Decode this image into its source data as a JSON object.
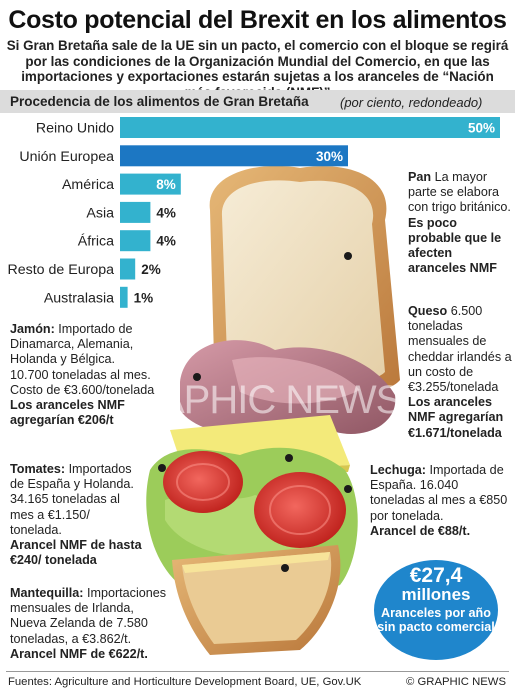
{
  "header": {
    "title": "Costo potencial del Brexit en los alimentos",
    "subtitle": "Si Gran Bretaña sale de la UE sin un pacto, el comercio con el bloque se regirá por las condiciones de la Organización Mundial del Comercio, en que las importaciones y exportaciones estarán sujetas a los aranceles de “Nación más favorecida (NMF)”"
  },
  "chart_data": {
    "type": "bar",
    "orientation": "horizontal",
    "title": "Procedencia de los alimentos de Gran Bretaña",
    "note": "(por ciento, redondeado)",
    "categories": [
      "Reino Unido",
      "Unión Europea",
      "América",
      "Asia",
      "África",
      "Resto de Europa",
      "Australasia"
    ],
    "values": [
      50,
      30,
      8,
      4,
      4,
      2,
      1
    ],
    "value_labels": [
      "50%",
      "30%",
      "8%",
      "4%",
      "4%",
      "2%",
      "1%"
    ],
    "xlim": [
      0,
      50
    ],
    "grid": false,
    "colors": {
      "default": "#33b2ce",
      "highlight": "#1c77c3"
    },
    "highlight_category": "Unión Europea"
  },
  "notes": {
    "pan": {
      "name": "Pan",
      "text": "La mayor parte se elabora con trigo británico.",
      "tariff": "Es poco probable que le afecten aranceles NMF"
    },
    "queso": {
      "name": "Queso",
      "text": "6.500 toneladas mensuales de cheddar irlandés a un costo de €3.255/tonelada",
      "tariff": "Los aranceles NMF agregarían €1.671/tonelada"
    },
    "jamon": {
      "name": "Jamón:",
      "text": "Importado de Dinamarca, Alemania, Holanda y Bélgica. 10.700 toneladas al mes. Costo de €3.600/tonelada",
      "tariff": "Los aranceles NMF agregarían €206/t"
    },
    "tomates": {
      "name": "Tomates:",
      "text": "Importados de España y Holanda. 34.165 toneladas al mes a €1.150/ tonelada.",
      "tariff": "Arancel NMF de hasta €240/ tonelada"
    },
    "lechuga": {
      "name": "Lechuga:",
      "text": "Importada de España. 16.040 toneladas al mes a €850 por tonelada.",
      "tariff": "Arancel de €88/t."
    },
    "mantequilla": {
      "name": "Mantequilla:",
      "text": "Importaciones mensuales de Irlanda, Nueva Zelanda de 7.580 toneladas, a €3.862/t.",
      "tariff": "Arancel NMF de €622/t."
    }
  },
  "badge": {
    "amount": "€27,4",
    "unit": "millones",
    "desc": "Aranceles por año sin pacto comercial"
  },
  "footer": {
    "sources": "Fuentes: Agriculture and Horticulture Development Board, UE, Gov.UK",
    "credit": "© GRAPHIC NEWS"
  },
  "watermark": "GRAPHIC NEWS",
  "colors": {
    "bar": "#33b2ce",
    "bar_highlight": "#1c77c3",
    "badge": "#1f86cc",
    "header_band": "#dcdcdc"
  }
}
